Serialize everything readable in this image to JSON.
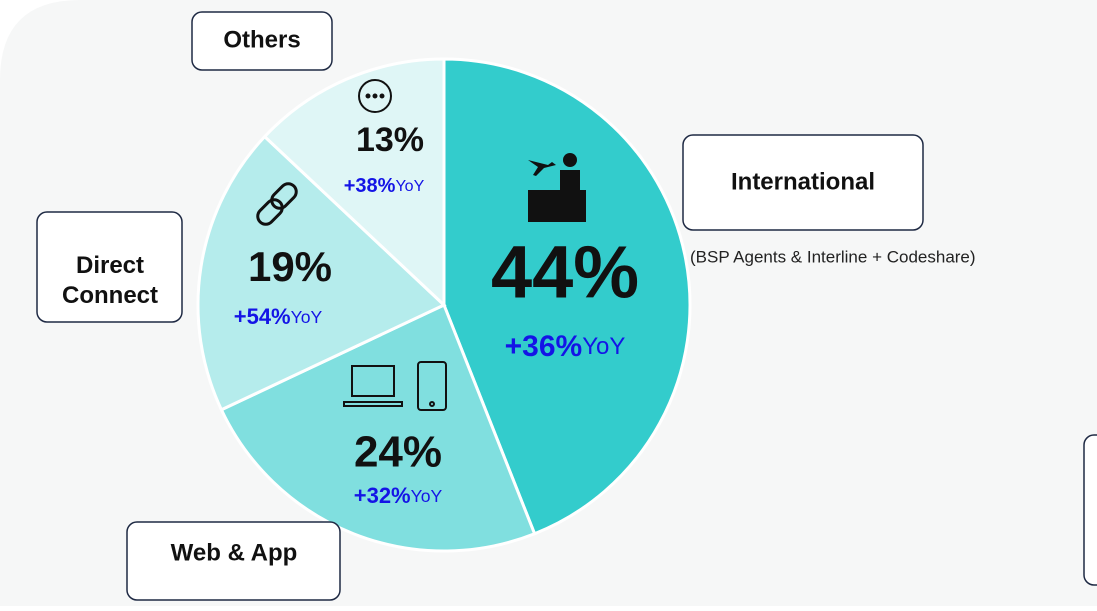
{
  "chart_data": {
    "type": "pie",
    "categories": [
      "International",
      "Web & App",
      "Direct Connect",
      "Others"
    ],
    "values": [
      44,
      24,
      19,
      13
    ],
    "value_labels": [
      "44%",
      "24%",
      "19%",
      "13%"
    ],
    "colors": [
      "#33cccc",
      "#80dfdf",
      "#b5ecec",
      "#dff6f6"
    ],
    "yoy": [
      36,
      32,
      54,
      38
    ],
    "yoy_labels": [
      "+36%",
      "+32%",
      "+54%",
      "+38%"
    ],
    "yoy_suffix": "YoY",
    "note": "(BSP Agents & Interline + Codeshare)"
  }
}
